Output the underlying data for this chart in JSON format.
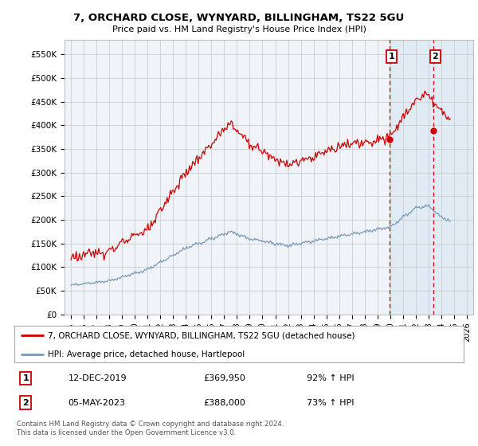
{
  "title": "7, ORCHARD CLOSE, WYNYARD, BILLINGHAM, TS22 5GU",
  "subtitle": "Price paid vs. HM Land Registry's House Price Index (HPI)",
  "legend_line1": "7, ORCHARD CLOSE, WYNYARD, BILLINGHAM, TS22 5GU (detached house)",
  "legend_line2": "HPI: Average price, detached house, Hartlepool",
  "footnote1": "Contains HM Land Registry data © Crown copyright and database right 2024.",
  "footnote2": "This data is licensed under the Open Government Licence v3.0.",
  "transaction1_date": "12-DEC-2019",
  "transaction1_price": "£369,950",
  "transaction1_hpi": "92% ↑ HPI",
  "transaction2_date": "05-MAY-2023",
  "transaction2_price": "£388,000",
  "transaction2_hpi": "73% ↑ HPI",
  "red_line_color": "#cc0000",
  "blue_line_color": "#7799bb",
  "dashed_line_color": "#cc0000",
  "background_color": "#ffffff",
  "grid_color": "#cccccc",
  "plot_bg_color": "#f0f4f8",
  "vline1_x": 2019.95,
  "vline2_x": 2023.37,
  "ylim": [
    0,
    580000
  ],
  "yticks": [
    0,
    50000,
    100000,
    150000,
    200000,
    250000,
    300000,
    350000,
    400000,
    450000,
    500000,
    550000
  ],
  "ytick_labels": [
    "£0",
    "£50K",
    "£100K",
    "£150K",
    "£200K",
    "£250K",
    "£300K",
    "£350K",
    "£400K",
    "£450K",
    "£500K",
    "£550K"
  ],
  "xlim": [
    1994.5,
    2026.5
  ],
  "xticks": [
    1995,
    1996,
    1997,
    1998,
    1999,
    2000,
    2001,
    2002,
    2003,
    2004,
    2005,
    2006,
    2007,
    2008,
    2009,
    2010,
    2011,
    2012,
    2013,
    2014,
    2015,
    2016,
    2017,
    2018,
    2019,
    2020,
    2021,
    2022,
    2023,
    2024,
    2025,
    2026
  ],
  "marker1_x": 2019.95,
  "marker1_y": 369950,
  "marker2_x": 2023.37,
  "marker2_y": 388000,
  "shaded_region_start": 2019.95,
  "shaded_region_end": 2026.5,
  "shaded_color": "#dce8f5"
}
